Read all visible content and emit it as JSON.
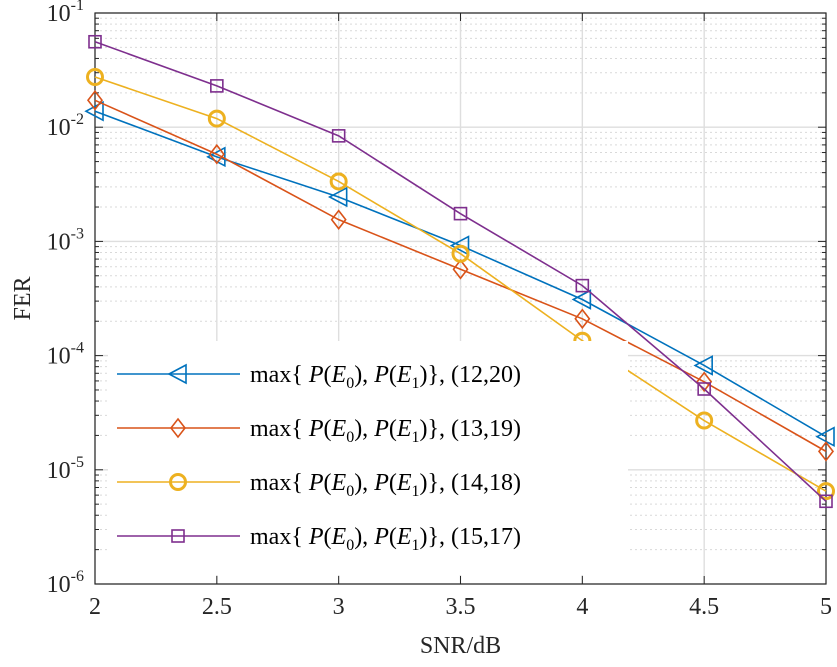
{
  "chart_data": {
    "type": "line",
    "xlabel": "SNR/dB",
    "ylabel": "FER",
    "xlim": [
      2,
      5
    ],
    "ylim": [
      1e-06,
      0.1
    ],
    "yscale": "log",
    "grid": true,
    "x_ticks": [
      "2",
      "2.5",
      "3",
      "3.5",
      "4",
      "4.5",
      "5"
    ],
    "y_ticks": [
      {
        "base": "10",
        "exp": "-1"
      },
      {
        "base": "10",
        "exp": "-2"
      },
      {
        "base": "10",
        "exp": "-3"
      },
      {
        "base": "10",
        "exp": "-4"
      },
      {
        "base": "10",
        "exp": "-5"
      },
      {
        "base": "10",
        "exp": "-6"
      }
    ],
    "legend_position": "bottom-left",
    "series": [
      {
        "name": "max{ P(E0), P(E1)}, (12,20)",
        "legend_pair": "(12,20)",
        "color": "#0072BD",
        "marker": "triangle-left",
        "x": [
          2,
          2.5,
          3,
          3.5,
          4,
          4.5,
          5
        ],
        "y": [
          0.0138,
          0.0055,
          0.00245,
          0.00092,
          0.00031,
          8.2e-05,
          1.95e-05
        ]
      },
      {
        "name": "max{ P(E0), P(E1)}, (13,19)",
        "legend_pair": "(13,19)",
        "color": "#D95319",
        "marker": "diamond",
        "x": [
          2,
          2.5,
          3,
          3.5,
          4,
          4.5,
          5
        ],
        "y": [
          0.0172,
          0.0058,
          0.00155,
          0.00057,
          0.00021,
          5.9e-05,
          1.45e-05
        ]
      },
      {
        "name": "max{ P(E0), P(E1)}, (14,18)",
        "legend_pair": "(14,18)",
        "color": "#EDB120",
        "marker": "circle",
        "x": [
          2,
          2.5,
          3,
          3.5,
          4,
          4.5,
          5
        ],
        "y": [
          0.0275,
          0.0119,
          0.00335,
          0.00078,
          0.000135,
          2.7e-05,
          6.5e-06
        ]
      },
      {
        "name": "max{ P(E0), P(E1)}, (15,17)",
        "legend_pair": "(15,17)",
        "color": "#7E2F8E",
        "marker": "square",
        "x": [
          2,
          2.5,
          3,
          3.5,
          4,
          4.5,
          5
        ],
        "y": [
          0.056,
          0.023,
          0.0084,
          0.00175,
          0.00041,
          5.1e-05,
          5.3e-06
        ]
      }
    ]
  },
  "legend": {
    "prefix": "max{ ",
    "p": "P",
    "e": "E",
    "sub0": "0",
    "sub1": "1",
    "suffix": "}, "
  }
}
